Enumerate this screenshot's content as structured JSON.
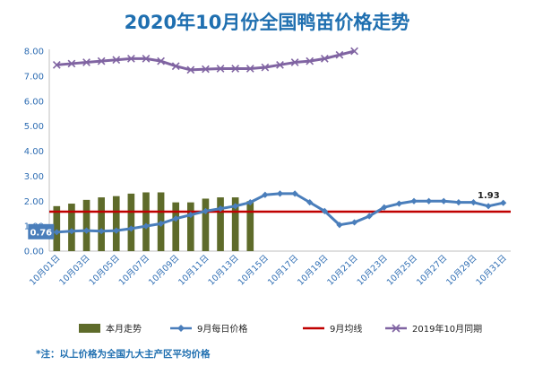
{
  "chart_data": {
    "type": "bar",
    "title": "2020年10月份全国鸭苗价格走势",
    "ylim": [
      0,
      8
    ],
    "yticks": [
      "0.00",
      "1.00",
      "2.00",
      "3.00",
      "4.00",
      "5.00",
      "6.00",
      "7.00",
      "8.00"
    ],
    "xtick_labels": [
      "10月01日",
      "10月03日",
      "10月05日",
      "10月07日",
      "10月09日",
      "10月11日",
      "10月13日",
      "10月15日",
      "10月17日",
      "10月19日",
      "10月21日",
      "10月23日",
      "10月25日",
      "10月27日",
      "10月29日",
      "10月31日"
    ],
    "days": [
      1,
      2,
      3,
      4,
      5,
      6,
      7,
      8,
      9,
      10,
      11,
      12,
      13,
      14,
      15,
      16,
      17,
      18,
      19,
      20,
      21,
      22,
      23,
      24,
      25,
      26,
      27,
      28,
      29,
      30,
      31
    ],
    "grid": false,
    "legend_position": "bottom",
    "series": [
      {
        "name": "本月走势",
        "kind": "bar",
        "color": "#5e6b2a",
        "values": [
          1.8,
          1.9,
          2.05,
          2.15,
          2.2,
          2.3,
          2.35,
          2.35,
          1.95,
          1.95,
          2.1,
          2.15,
          2.15,
          2.0,
          null,
          null,
          null,
          null,
          null,
          null,
          null,
          null,
          null,
          null,
          null,
          null,
          null,
          null,
          null,
          null,
          null
        ]
      },
      {
        "name": "9月每日价格",
        "kind": "line",
        "marker": "diamond",
        "color": "#4a7ebb",
        "values": [
          0.76,
          0.8,
          0.82,
          0.8,
          0.82,
          0.9,
          1.0,
          1.1,
          1.3,
          1.45,
          1.6,
          1.7,
          1.8,
          1.95,
          2.25,
          2.3,
          2.3,
          1.95,
          1.6,
          1.05,
          1.15,
          1.4,
          1.75,
          1.9,
          2.0,
          2.0,
          2.0,
          1.95,
          1.95,
          1.8,
          1.93
        ]
      },
      {
        "name": "9月均线",
        "kind": "hline",
        "color": "#c00000",
        "value": 1.58
      },
      {
        "name": "2019年10月同期",
        "kind": "line",
        "marker": "x",
        "color": "#8064a2",
        "values": [
          7.45,
          7.5,
          7.55,
          7.6,
          7.65,
          7.7,
          7.7,
          7.6,
          7.4,
          7.25,
          7.28,
          7.3,
          7.3,
          7.3,
          7.35,
          7.45,
          7.55,
          7.6,
          7.7,
          7.85,
          8.0,
          null,
          null,
          null,
          null,
          null,
          null,
          null,
          null,
          null,
          null
        ]
      }
    ],
    "data_labels": [
      {
        "series": "9月每日价格",
        "day": 1,
        "text": "0.76"
      },
      {
        "series": "9月每日价格",
        "day": 31,
        "text": "1.93"
      }
    ]
  },
  "footnote": "*注：以上价格为全国九大主产区平均价格"
}
